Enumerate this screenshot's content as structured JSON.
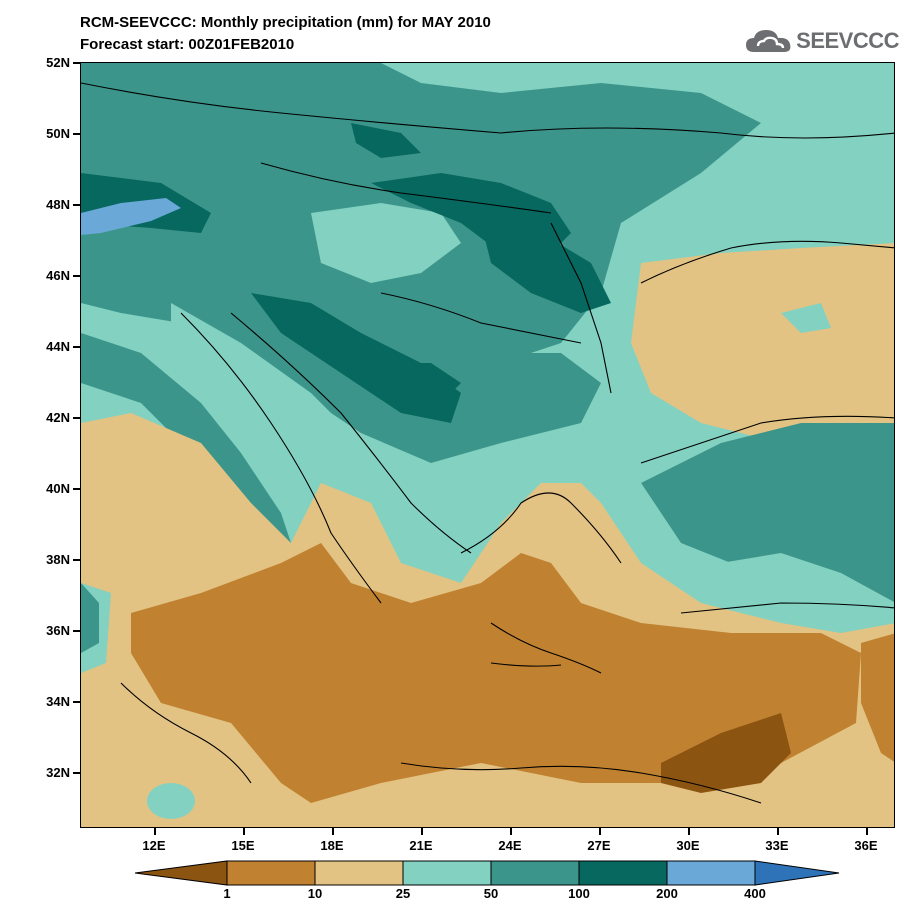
{
  "header": {
    "title": "RCM-SEEVCCC: Monthly precipitation (mm) for MAY 2010",
    "subtitle": "Forecast start: 00Z01FEB2010",
    "logo_text": "SEEVCCC"
  },
  "map": {
    "lat_labels": [
      "52N",
      "50N",
      "48N",
      "46N",
      "44N",
      "42N",
      "40N",
      "38N",
      "36N",
      "34N",
      "32N"
    ],
    "lon_labels": [
      "12E",
      "15E",
      "18E",
      "21E",
      "24E",
      "27E",
      "30E",
      "33E",
      "36E"
    ],
    "lat_range": [
      30.5,
      52
    ],
    "lon_range": [
      9.5,
      37
    ]
  },
  "legend": {
    "labels": [
      "1",
      "10",
      "25",
      "50",
      "100",
      "200",
      "400"
    ],
    "colors": [
      "#8b5410",
      "#c08230",
      "#e3c383",
      "#82d1c1",
      "#3c958b",
      "#06685e",
      "#6aa8d8",
      "#2e72b8"
    ],
    "unit": "mm"
  }
}
